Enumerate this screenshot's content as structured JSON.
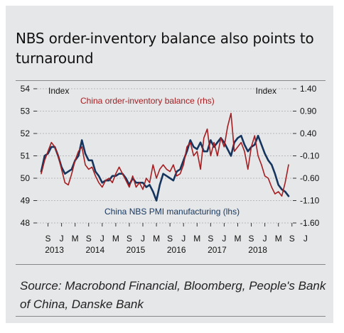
{
  "title": "NBS order-inventory balance also points to turnaround",
  "source": "Source: Macrobond Financial, Bloomberg, People's Bank of China, Danske Bank",
  "chart_data": {
    "type": "line",
    "left_axis_label": "Index",
    "right_axis_label": "Index",
    "left_ylim": [
      48,
      54
    ],
    "left_ticks": [
      "48",
      "49",
      "50",
      "51",
      "52",
      "53",
      "54"
    ],
    "right_ylim": [
      -1.6,
      1.4
    ],
    "right_ticks": [
      "-1.60",
      "-1.10",
      "-0.60",
      "-0.10",
      "0.40",
      "0.90",
      "1.40"
    ],
    "x_month_labels": [
      "S",
      "J",
      "M",
      "S",
      "J",
      "M",
      "S",
      "J",
      "M",
      "S",
      "J",
      "M",
      "S",
      "J",
      "M",
      "S",
      "J",
      "M",
      "S",
      "J"
    ],
    "x_year_labels": [
      "2013",
      "2014",
      "2015",
      "2016",
      "2017",
      "2018"
    ],
    "colors": {
      "pmi": "#15355e",
      "balance": "#a51e22"
    },
    "series": [
      {
        "name": "China NBS PMI manufacturing (lhs)",
        "axis": "left",
        "start": "2013-07",
        "values": [
          50.3,
          51.0,
          51.1,
          51.4,
          51.4,
          51.0,
          50.5,
          50.2,
          50.3,
          50.4,
          50.8,
          51.0,
          51.7,
          51.1,
          50.8,
          50.8,
          50.3,
          50.1,
          49.8,
          49.9,
          49.9,
          50.1,
          50.1,
          50.2,
          50.2,
          50.0,
          49.7,
          50.0,
          49.8,
          49.8,
          49.8,
          49.6,
          49.7,
          49.4,
          49.0,
          49.7,
          50.2,
          50.1,
          50.0,
          49.9,
          50.3,
          50.4,
          50.8,
          51.2,
          51.7,
          51.4,
          51.3,
          51.6,
          51.2,
          51.2,
          51.7,
          51.4,
          51.6,
          51.8,
          51.6,
          51.3,
          51.0,
          51.6,
          51.8,
          51.9,
          51.5,
          51.2,
          51.4,
          51.5,
          51.9,
          51.5,
          51.1,
          50.8,
          50.6,
          50.2,
          49.7,
          49.5,
          49.4,
          49.2
        ],
        "color": "#15355e"
      },
      {
        "name": "China order-inventory balance (rhs)",
        "axis": "right",
        "start": "2013-07",
        "values": [
          -0.5,
          -0.2,
          0.0,
          0.2,
          0.1,
          -0.1,
          -0.4,
          -0.7,
          -0.75,
          -0.5,
          -0.2,
          0.0,
          0.1,
          -0.3,
          -0.4,
          -0.35,
          -0.55,
          -0.7,
          -0.8,
          -0.65,
          -0.6,
          -0.7,
          -0.5,
          -0.35,
          -0.5,
          -0.65,
          -0.8,
          -0.55,
          -0.8,
          -0.7,
          -0.85,
          -0.6,
          -0.7,
          -0.3,
          -0.6,
          -0.4,
          -0.3,
          -0.4,
          -0.45,
          -0.3,
          -0.55,
          -0.5,
          -0.3,
          0.1,
          0.2,
          -0.1,
          0.0,
          -0.4,
          0.3,
          0.5,
          -0.1,
          0.2,
          -0.1,
          0.3,
          0.1,
          0.55,
          0.85,
          0.0,
          0.1,
          0.2,
          0.0,
          -0.4,
          0.1,
          0.35,
          -0.1,
          -0.3,
          -0.55,
          -0.6,
          -0.8,
          -0.95,
          -0.9,
          -1.0,
          -0.7,
          -0.3
        ],
        "color": "#a51e22"
      }
    ]
  }
}
